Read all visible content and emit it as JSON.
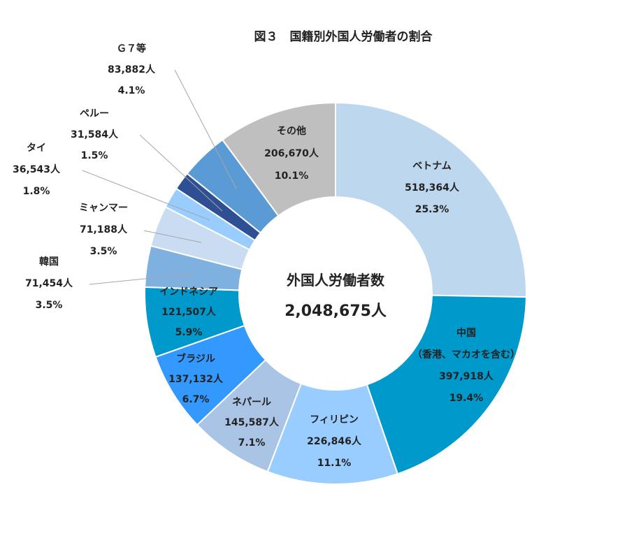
{
  "chart_data": {
    "type": "pie",
    "subtype": "donut",
    "title": "図３　国籍別外国人労働者の割合",
    "center": {
      "label": "外国人労働者数",
      "total": "2,048,675人"
    },
    "slices": [
      {
        "name": "ベトナム",
        "count": "518,364人",
        "percent": "25.3%",
        "value": 518364,
        "color": "#bdd7ee"
      },
      {
        "name": "中国",
        "name2": "（香港、マカオを含む）",
        "count": "397,918人",
        "percent": "19.4%",
        "value": 397918,
        "color": "#0099cc"
      },
      {
        "name": "フィリピン",
        "count": "226,846人",
        "percent": "11.1%",
        "value": 226846,
        "color": "#99ccff"
      },
      {
        "name": "ネパール",
        "count": "145,587人",
        "percent": "7.1%",
        "value": 145587,
        "color": "#a9c4e4"
      },
      {
        "name": "ブラジル",
        "count": "137,132人",
        "percent": "6.7%",
        "value": 137132,
        "color": "#3399ff"
      },
      {
        "name": "インドネシア",
        "count": "121,507人",
        "percent": "5.9%",
        "value": 121507,
        "color": "#0099cc"
      },
      {
        "name": "韓国",
        "count": "71,454人",
        "percent": "3.5%",
        "value": 71454,
        "color": "#7fb1e0"
      },
      {
        "name": "ミャンマー",
        "count": "71,188人",
        "percent": "3.5%",
        "value": 71188,
        "color": "#c9dcf1"
      },
      {
        "name": "タイ",
        "count": "36,543人",
        "percent": "1.8%",
        "value": 36543,
        "color": "#99ccff"
      },
      {
        "name": "ペルー",
        "count": "31,584人",
        "percent": "1.5%",
        "value": 31584,
        "color": "#2f4f94"
      },
      {
        "name": "Ｇ７等",
        "count": "83,882人",
        "percent": "4.1%",
        "value": 83882,
        "color": "#5b9bd5"
      },
      {
        "name": "その他",
        "count": "206,670人",
        "percent": "10.1%",
        "value": 206670,
        "color": "#bfbfbf"
      }
    ]
  }
}
